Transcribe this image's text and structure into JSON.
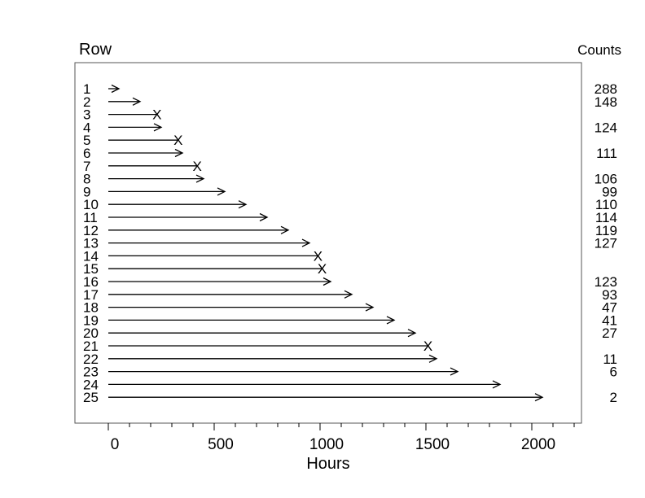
{
  "chart_data": {
    "type": "event-plot",
    "row_header": "Row",
    "counts_header": "Counts",
    "xlabel": "Hours",
    "xlim": [
      0,
      2200
    ],
    "x_ticks": [
      0,
      500,
      1000,
      1500,
      2000
    ],
    "x_tick_labels": [
      "0",
      "500",
      "1000",
      "1500",
      "2000"
    ],
    "grid": false,
    "rows": [
      {
        "row": "1",
        "end": 50,
        "end_marker": "arrow",
        "count": "288"
      },
      {
        "row": "2",
        "end": 150,
        "end_marker": "arrow",
        "count": "148"
      },
      {
        "row": "3",
        "end": 230,
        "end_marker": "x",
        "count": ""
      },
      {
        "row": "4",
        "end": 250,
        "end_marker": "arrow",
        "count": "124"
      },
      {
        "row": "5",
        "end": 330,
        "end_marker": "x",
        "count": ""
      },
      {
        "row": "6",
        "end": 350,
        "end_marker": "arrow",
        "count": "111"
      },
      {
        "row": "7",
        "end": 420,
        "end_marker": "x",
        "count": ""
      },
      {
        "row": "8",
        "end": 450,
        "end_marker": "arrow",
        "count": "106"
      },
      {
        "row": "9",
        "end": 550,
        "end_marker": "arrow",
        "count": "99"
      },
      {
        "row": "10",
        "end": 650,
        "end_marker": "arrow",
        "count": "110"
      },
      {
        "row": "11",
        "end": 750,
        "end_marker": "arrow",
        "count": "114"
      },
      {
        "row": "12",
        "end": 850,
        "end_marker": "arrow",
        "count": "119"
      },
      {
        "row": "13",
        "end": 950,
        "end_marker": "arrow",
        "count": "127"
      },
      {
        "row": "14",
        "end": 990,
        "end_marker": "x",
        "count": ""
      },
      {
        "row": "15",
        "end": 1010,
        "end_marker": "x",
        "count": ""
      },
      {
        "row": "16",
        "end": 1050,
        "end_marker": "arrow",
        "count": "123"
      },
      {
        "row": "17",
        "end": 1150,
        "end_marker": "arrow",
        "count": "93"
      },
      {
        "row": "18",
        "end": 1250,
        "end_marker": "arrow",
        "count": "47"
      },
      {
        "row": "19",
        "end": 1350,
        "end_marker": "arrow",
        "count": "41"
      },
      {
        "row": "20",
        "end": 1450,
        "end_marker": "arrow",
        "count": "27"
      },
      {
        "row": "21",
        "end": 1510,
        "end_marker": "x",
        "count": ""
      },
      {
        "row": "22",
        "end": 1550,
        "end_marker": "arrow",
        "count": "11"
      },
      {
        "row": "23",
        "end": 1650,
        "end_marker": "arrow",
        "count": "6"
      },
      {
        "row": "24",
        "end": 1850,
        "end_marker": "arrow",
        "count": ""
      },
      {
        "row": "25",
        "end": 2050,
        "end_marker": "arrow",
        "count": "2"
      }
    ]
  }
}
